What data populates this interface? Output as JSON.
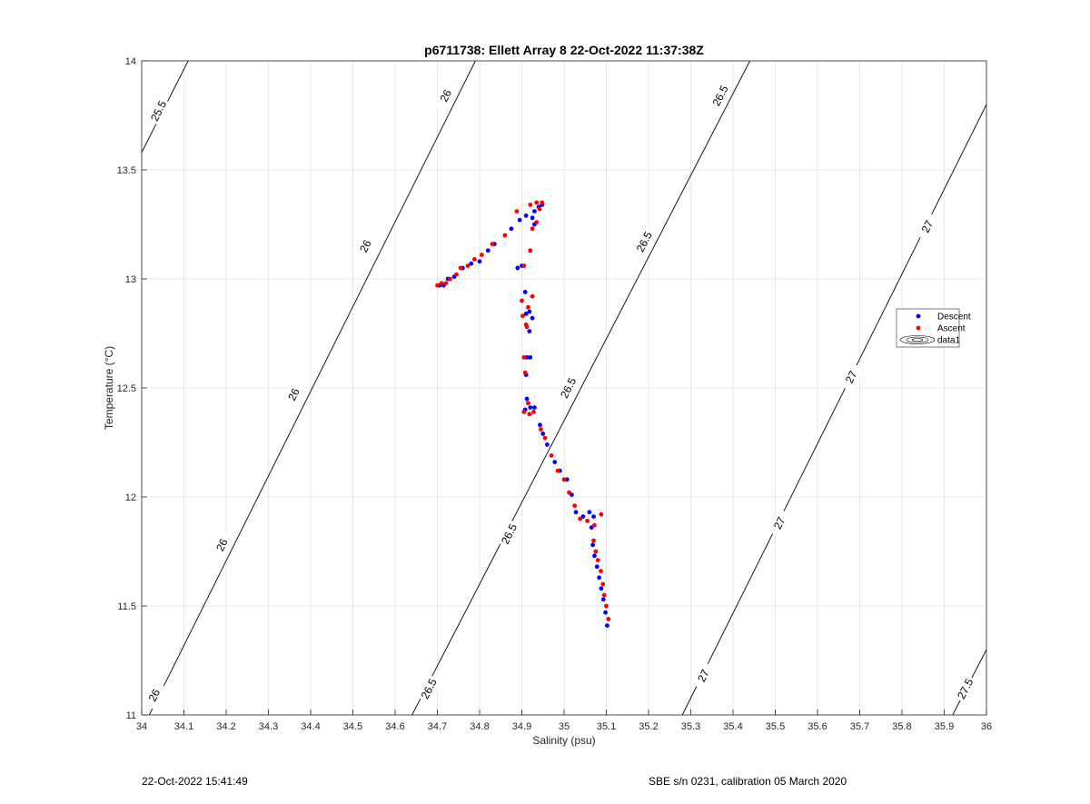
{
  "chart_data": {
    "type": "scatter",
    "title": "p6711738: Ellett Array 8 22-Oct-2022 11:37:38Z",
    "xlabel": "Salinity (psu)",
    "ylabel": "Temperature (°C)",
    "xlim": [
      34,
      36
    ],
    "ylim": [
      11,
      14
    ],
    "grid": true,
    "legend_position": "right",
    "xticks": [
      "34",
      "34.1",
      "34.2",
      "34.3",
      "34.4",
      "34.5",
      "34.6",
      "34.7",
      "34.8",
      "34.9",
      "35",
      "35.1",
      "35.2",
      "35.3",
      "35.4",
      "35.5",
      "35.6",
      "35.7",
      "35.8",
      "35.9",
      "36"
    ],
    "yticks": [
      "11",
      "11.5",
      "12",
      "12.5",
      "13",
      "13.5",
      "14"
    ],
    "contours": [
      {
        "level": "25.5",
        "points": [
          [
            34.0,
            13.58
          ],
          [
            34.11,
            14.0
          ]
        ],
        "labels": [
          {
            "x": 34.04,
            "y": 13.77
          }
        ]
      },
      {
        "level": "26",
        "points": [
          [
            34.0,
            10.93
          ],
          [
            34.79,
            14.0
          ]
        ],
        "labels": [
          {
            "x": 34.03,
            "y": 11.09
          },
          {
            "x": 34.19,
            "y": 11.78
          },
          {
            "x": 34.36,
            "y": 12.47
          },
          {
            "x": 34.53,
            "y": 13.15
          },
          {
            "x": 34.72,
            "y": 13.84
          }
        ]
      },
      {
        "level": "26.5",
        "points": [
          [
            34.64,
            11.0
          ],
          [
            35.44,
            14.0
          ]
        ],
        "labels": [
          {
            "x": 34.68,
            "y": 11.12
          },
          {
            "x": 34.87,
            "y": 11.83
          },
          {
            "x": 35.01,
            "y": 12.5
          },
          {
            "x": 35.19,
            "y": 13.17
          },
          {
            "x": 35.37,
            "y": 13.84
          }
        ]
      },
      {
        "level": "27",
        "points": [
          [
            35.28,
            11.0
          ],
          [
            36.0,
            13.8
          ]
        ],
        "labels": [
          {
            "x": 35.33,
            "y": 11.18
          },
          {
            "x": 35.51,
            "y": 11.88
          },
          {
            "x": 35.68,
            "y": 12.55
          },
          {
            "x": 35.86,
            "y": 13.24
          }
        ]
      },
      {
        "level": "27.5",
        "points": [
          [
            35.92,
            11.0
          ],
          [
            36.0,
            11.3
          ]
        ],
        "labels": [
          {
            "x": 35.95,
            "y": 11.12
          }
        ]
      }
    ],
    "series": [
      {
        "name": "Descent",
        "color": "#0000ff",
        "points": [
          [
            35.102,
            11.41
          ],
          [
            35.098,
            11.47
          ],
          [
            35.093,
            11.53
          ],
          [
            35.088,
            11.58
          ],
          [
            35.083,
            11.63
          ],
          [
            35.078,
            11.68
          ],
          [
            35.072,
            11.73
          ],
          [
            35.068,
            11.78
          ],
          [
            35.065,
            11.86
          ],
          [
            35.07,
            11.91
          ],
          [
            35.06,
            11.93
          ],
          [
            35.045,
            11.91
          ],
          [
            35.028,
            11.93
          ],
          [
            35.018,
            12.01
          ],
          [
            35.007,
            12.08
          ],
          [
            34.99,
            12.12
          ],
          [
            34.978,
            12.16
          ],
          [
            34.96,
            12.24
          ],
          [
            34.95,
            12.29
          ],
          [
            34.943,
            12.33
          ],
          [
            34.93,
            12.41
          ],
          [
            34.92,
            12.41
          ],
          [
            34.912,
            12.45
          ],
          [
            34.908,
            12.4
          ],
          [
            34.91,
            12.56
          ],
          [
            34.92,
            12.64
          ],
          [
            34.912,
            12.64
          ],
          [
            34.918,
            12.76
          ],
          [
            34.925,
            12.82
          ],
          [
            34.918,
            12.85
          ],
          [
            34.91,
            12.84
          ],
          [
            34.908,
            12.94
          ],
          [
            34.89,
            13.05
          ],
          [
            34.9,
            13.06
          ],
          [
            34.92,
            13.13
          ],
          [
            34.93,
            13.25
          ],
          [
            34.925,
            13.28
          ],
          [
            34.91,
            13.29
          ],
          [
            34.93,
            13.31
          ],
          [
            34.94,
            13.33
          ],
          [
            34.948,
            13.34
          ],
          [
            34.895,
            13.27
          ],
          [
            34.875,
            13.23
          ],
          [
            34.835,
            13.16
          ],
          [
            34.82,
            13.13
          ],
          [
            34.8,
            13.08
          ],
          [
            34.78,
            13.07
          ],
          [
            34.76,
            13.05
          ],
          [
            34.74,
            13.01
          ],
          [
            34.725,
            13.0
          ],
          [
            34.715,
            12.97
          ],
          [
            34.705,
            12.97
          ]
        ]
      },
      {
        "name": "Ascent",
        "color": "#ff0000",
        "points": [
          [
            35.105,
            11.44
          ],
          [
            35.1,
            11.5
          ],
          [
            35.095,
            11.55
          ],
          [
            35.092,
            11.6
          ],
          [
            35.087,
            11.66
          ],
          [
            35.08,
            11.71
          ],
          [
            35.075,
            11.75
          ],
          [
            35.07,
            11.8
          ],
          [
            35.072,
            11.87
          ],
          [
            35.088,
            11.92
          ],
          [
            35.055,
            11.89
          ],
          [
            35.038,
            11.9
          ],
          [
            35.025,
            11.96
          ],
          [
            35.012,
            12.02
          ],
          [
            35.0,
            12.08
          ],
          [
            34.985,
            12.12
          ],
          [
            34.97,
            12.19
          ],
          [
            34.955,
            12.27
          ],
          [
            34.945,
            12.31
          ],
          [
            34.928,
            12.39
          ],
          [
            34.905,
            12.39
          ],
          [
            34.915,
            12.43
          ],
          [
            34.918,
            12.38
          ],
          [
            34.908,
            12.57
          ],
          [
            34.905,
            12.64
          ],
          [
            34.912,
            12.78
          ],
          [
            34.91,
            12.79
          ],
          [
            34.902,
            12.83
          ],
          [
            34.9,
            12.9
          ],
          [
            34.915,
            12.87
          ],
          [
            34.925,
            12.92
          ],
          [
            34.905,
            13.06
          ],
          [
            34.92,
            13.13
          ],
          [
            34.925,
            13.23
          ],
          [
            34.935,
            13.26
          ],
          [
            34.92,
            13.34
          ],
          [
            34.935,
            13.35
          ],
          [
            34.948,
            13.35
          ],
          [
            34.942,
            13.32
          ],
          [
            34.888,
            13.31
          ],
          [
            34.86,
            13.2
          ],
          [
            34.83,
            13.16
          ],
          [
            34.805,
            13.11
          ],
          [
            34.788,
            13.09
          ],
          [
            34.772,
            13.06
          ],
          [
            34.755,
            13.05
          ],
          [
            34.745,
            13.02
          ],
          [
            34.73,
            13.0
          ],
          [
            34.72,
            12.98
          ],
          [
            34.71,
            12.98
          ],
          [
            34.7,
            12.97
          ]
        ]
      }
    ],
    "legend": [
      "Descent",
      "Ascent",
      "data1"
    ]
  },
  "footer": {
    "left": "22-Oct-2022 15:41:49",
    "right": "SBE s/n 0231, calibration 05 March 2020"
  }
}
